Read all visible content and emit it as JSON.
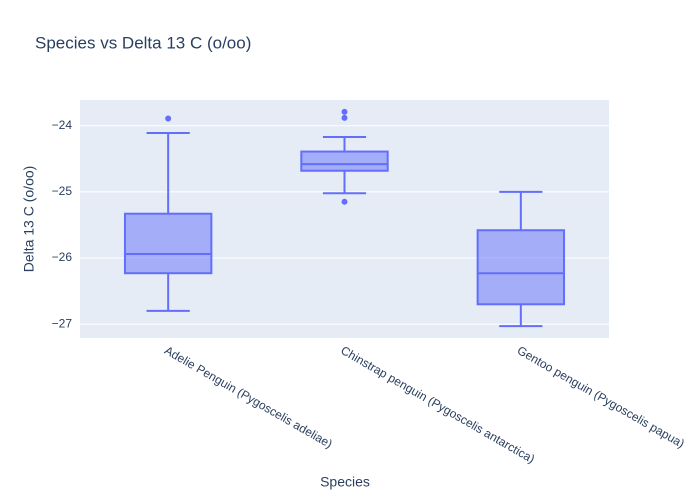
{
  "chart_data": {
    "type": "box",
    "title": "Species vs Delta 13 C (o/oo)",
    "x_label": "Species",
    "y_label": "Delta 13 C (o/oo)",
    "categories": [
      "Adelie Penguin (Pygoscelis adeliae)",
      "Chinstrap penguin (Pygoscelis antarctica)",
      "Gentoo penguin (Pygoscelis papua)"
    ],
    "boxes": [
      {
        "whisker_low": -26.8,
        "q1": -26.23,
        "median": -25.94,
        "q3": -25.33,
        "whisker_high": -24.11,
        "outliers": [
          -23.89
        ]
      },
      {
        "whisker_low": -25.02,
        "q1": -24.68,
        "median": -24.58,
        "q3": -24.39,
        "whisker_high": -24.17,
        "outliers": [
          -23.79,
          -23.88,
          -25.15
        ]
      },
      {
        "whisker_low": -27.03,
        "q1": -26.7,
        "median": -26.23,
        "q3": -25.58,
        "whisker_high": -25.0,
        "outliers": []
      }
    ],
    "color": "#636efa",
    "fill": "rgba(99,110,250,0.5)",
    "ylim": [
      -27.21,
      -23.61
    ],
    "yticks": [
      {
        "value": -27,
        "label": "−27"
      },
      {
        "value": -26,
        "label": "−26"
      },
      {
        "value": -25,
        "label": "−25"
      },
      {
        "value": -24,
        "label": "−24"
      }
    ],
    "grid": true
  }
}
